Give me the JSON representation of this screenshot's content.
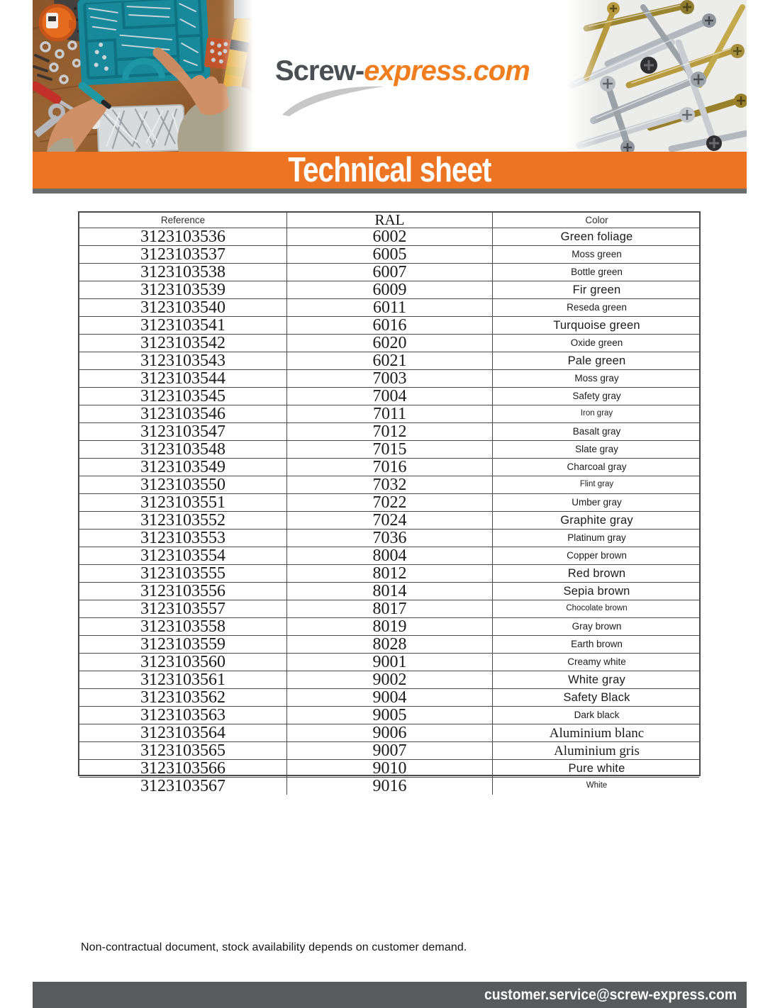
{
  "logo": {
    "part1": "Screw-",
    "part2": "express.com"
  },
  "banner": {
    "title": "Technical sheet"
  },
  "images": {
    "left_photo": "hands-sorting-screws-in-organizer-on-workbench",
    "right_photo": "pile-of-metal-and-brass-screws"
  },
  "table": {
    "headers": {
      "reference": "Reference",
      "ral": "RAL",
      "color": "Color"
    },
    "rows": [
      {
        "reference": "3123103536",
        "ral": "6002",
        "color": "Green foliage",
        "style": "lg"
      },
      {
        "reference": "3123103537",
        "ral": "6005",
        "color": "Moss green",
        "style": "md"
      },
      {
        "reference": "3123103538",
        "ral": "6007",
        "color": "Bottle green",
        "style": "md"
      },
      {
        "reference": "3123103539",
        "ral": "6009",
        "color": "Fir green",
        "style": "lg"
      },
      {
        "reference": "3123103540",
        "ral": "6011",
        "color": "Reseda green",
        "style": "md"
      },
      {
        "reference": "3123103541",
        "ral": "6016",
        "color": "Turquoise green",
        "style": "lg"
      },
      {
        "reference": "3123103542",
        "ral": "6020",
        "color": "Oxide green",
        "style": "md"
      },
      {
        "reference": "3123103543",
        "ral": "6021",
        "color": "Pale green",
        "style": "lg"
      },
      {
        "reference": "3123103544",
        "ral": "7003",
        "color": "Moss gray",
        "style": "md"
      },
      {
        "reference": "3123103545",
        "ral": "7004",
        "color": "Safety gray",
        "style": "md"
      },
      {
        "reference": "3123103546",
        "ral": "7011",
        "color": "Iron gray",
        "style": "sm"
      },
      {
        "reference": "3123103547",
        "ral": "7012",
        "color": "Basalt gray",
        "style": "md"
      },
      {
        "reference": "3123103548",
        "ral": "7015",
        "color": "Slate gray",
        "style": "md"
      },
      {
        "reference": "3123103549",
        "ral": "7016",
        "color": "Charcoal gray",
        "style": "md"
      },
      {
        "reference": "3123103550",
        "ral": "7032",
        "color": "Flint gray",
        "style": "sm"
      },
      {
        "reference": "3123103551",
        "ral": "7022",
        "color": "Umber gray",
        "style": "md"
      },
      {
        "reference": "3123103552",
        "ral": "7024",
        "color": "Graphite gray",
        "style": "lg"
      },
      {
        "reference": "3123103553",
        "ral": "7036",
        "color": "Platinum gray",
        "style": "md"
      },
      {
        "reference": "3123103554",
        "ral": "8004",
        "color": "Copper brown",
        "style": "md"
      },
      {
        "reference": "3123103555",
        "ral": "8012",
        "color": "Red brown",
        "style": "lg"
      },
      {
        "reference": "3123103556",
        "ral": "8014",
        "color": "Sepia brown",
        "style": "lg"
      },
      {
        "reference": "3123103557",
        "ral": "8017",
        "color": "Chocolate brown",
        "style": "sm"
      },
      {
        "reference": "3123103558",
        "ral": "8019",
        "color": "Gray brown",
        "style": "md"
      },
      {
        "reference": "3123103559",
        "ral": "8028",
        "color": "Earth brown",
        "style": "md"
      },
      {
        "reference": "3123103560",
        "ral": "9001",
        "color": "Creamy white",
        "style": "md"
      },
      {
        "reference": "3123103561",
        "ral": "9002",
        "color": "White gray",
        "style": "lg"
      },
      {
        "reference": "3123103562",
        "ral": "9004",
        "color": "Safety Black",
        "style": "lg"
      },
      {
        "reference": "3123103563",
        "ral": "9005",
        "color": "Dark black",
        "style": "md"
      },
      {
        "reference": "3123103564",
        "ral": "9006",
        "color": "Aluminium blanc",
        "style": "serif"
      },
      {
        "reference": "3123103565",
        "ral": "9007",
        "color": "Aluminium gris",
        "style": "serif"
      },
      {
        "reference": "3123103566",
        "ral": "9010",
        "color": "Pure white",
        "style": "lg"
      },
      {
        "reference": "3123103567",
        "ral": "9016",
        "color": "White",
        "style": "sm"
      }
    ]
  },
  "footer": {
    "note": "Non-contractual document, stock availability depends on customer demand.",
    "email": "customer.service@screw-express.com"
  },
  "colors": {
    "accent_orange": "#ED7423",
    "divider_gray": "#6B6C6E",
    "footer_gray": "#595A5C",
    "logo_gray": "#4A4F54",
    "logo_orange": "#F07D1E"
  }
}
